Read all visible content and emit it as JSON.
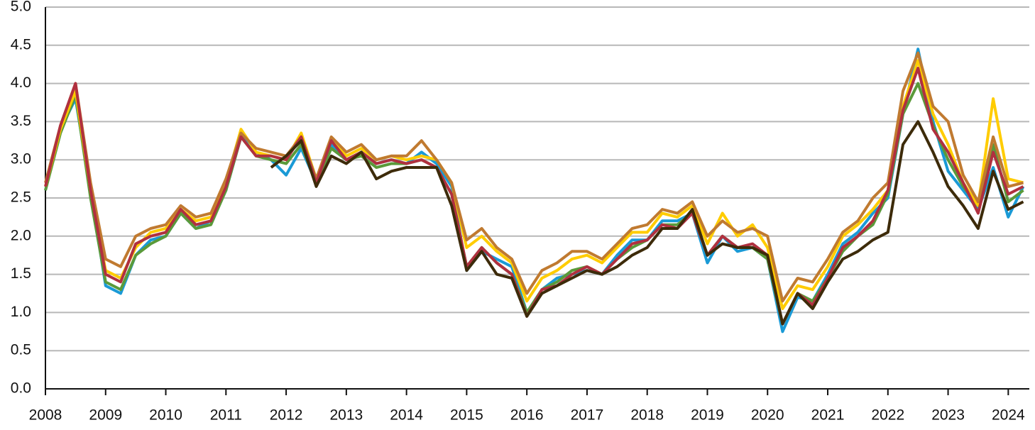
{
  "chart_data": {
    "type": "line",
    "x": [
      2008,
      2008.25,
      2008.5,
      2008.75,
      2009,
      2009.25,
      2009.5,
      2009.75,
      2010,
      2010.25,
      2010.5,
      2010.75,
      2011,
      2011.25,
      2011.5,
      2011.75,
      2012,
      2012.25,
      2012.5,
      2012.75,
      2013,
      2013.25,
      2013.5,
      2013.75,
      2014,
      2014.25,
      2014.5,
      2014.75,
      2015,
      2015.25,
      2015.5,
      2015.75,
      2016,
      2016.25,
      2016.5,
      2016.75,
      2017,
      2017.25,
      2017.5,
      2017.75,
      2018,
      2018.25,
      2018.5,
      2018.75,
      2019,
      2019.25,
      2019.5,
      2019.75,
      2020,
      2020.25,
      2020.5,
      2020.75,
      2021,
      2021.25,
      2021.5,
      2021.75,
      2022,
      2022.25,
      2022.5,
      2022.75,
      2023,
      2023.25,
      2023.5,
      2023.75,
      2024,
      2024.25
    ],
    "series": [
      {
        "color": "#1a9ad6",
        "values": [
          2.6,
          3.4,
          3.8,
          2.6,
          1.35,
          1.25,
          1.75,
          1.95,
          2.0,
          2.3,
          2.1,
          2.2,
          2.6,
          3.3,
          3.1,
          3.0,
          2.8,
          3.15,
          2.7,
          3.2,
          3.0,
          3.1,
          2.95,
          3.0,
          2.95,
          3.1,
          2.95,
          2.65,
          1.55,
          1.8,
          1.7,
          1.6,
          1.0,
          1.3,
          1.45,
          1.5,
          1.55,
          1.5,
          1.75,
          1.95,
          1.95,
          2.2,
          2.2,
          2.3,
          1.65,
          2.0,
          1.8,
          1.85,
          1.7,
          0.75,
          1.2,
          1.15,
          1.5,
          1.9,
          2.05,
          2.3,
          2.5,
          3.6,
          4.45,
          3.5,
          2.85,
          2.6,
          2.35,
          2.9,
          2.25,
          2.65
        ]
      },
      {
        "color": "#5a9a3a",
        "values": [
          2.6,
          3.35,
          3.85,
          2.5,
          1.4,
          1.3,
          1.75,
          1.9,
          2.0,
          2.3,
          2.1,
          2.15,
          2.6,
          3.3,
          3.05,
          3.0,
          2.95,
          3.2,
          2.7,
          3.15,
          3.0,
          3.05,
          2.9,
          2.95,
          2.95,
          3.0,
          2.9,
          2.55,
          1.6,
          1.85,
          1.65,
          1.5,
          1.0,
          1.3,
          1.4,
          1.55,
          1.6,
          1.5,
          1.7,
          1.85,
          1.95,
          2.15,
          2.15,
          2.3,
          1.75,
          2.0,
          1.85,
          1.85,
          1.7,
          0.85,
          1.25,
          1.15,
          1.45,
          1.8,
          2.0,
          2.15,
          2.55,
          3.6,
          4.0,
          3.45,
          3.0,
          2.65,
          2.4,
          3.2,
          2.45,
          2.6
        ]
      },
      {
        "color": "#ffcc00",
        "values": [
          2.65,
          3.4,
          3.9,
          2.6,
          1.55,
          1.45,
          1.85,
          2.05,
          2.1,
          2.35,
          2.2,
          2.25,
          2.7,
          3.4,
          3.1,
          3.05,
          3.0,
          3.35,
          2.75,
          3.25,
          3.05,
          3.15,
          3.0,
          3.05,
          3.0,
          3.05,
          3.0,
          2.7,
          1.85,
          2.0,
          1.8,
          1.65,
          1.15,
          1.45,
          1.55,
          1.7,
          1.75,
          1.65,
          1.85,
          2.05,
          2.05,
          2.3,
          2.25,
          2.4,
          1.9,
          2.3,
          2.0,
          2.15,
          1.85,
          1.05,
          1.35,
          1.3,
          1.6,
          2.0,
          2.15,
          2.35,
          2.6,
          3.7,
          4.3,
          3.6,
          3.2,
          2.7,
          2.4,
          3.8,
          2.75,
          2.7
        ]
      },
      {
        "color": "#c07a30",
        "values": [
          2.7,
          3.45,
          4.0,
          2.7,
          1.7,
          1.6,
          2.0,
          2.1,
          2.15,
          2.4,
          2.25,
          2.3,
          2.75,
          3.35,
          3.15,
          3.1,
          3.05,
          3.3,
          2.75,
          3.3,
          3.1,
          3.2,
          3.0,
          3.05,
          3.05,
          3.25,
          3.0,
          2.7,
          1.95,
          2.1,
          1.85,
          1.7,
          1.25,
          1.55,
          1.65,
          1.8,
          1.8,
          1.7,
          1.9,
          2.1,
          2.15,
          2.35,
          2.3,
          2.45,
          2.0,
          2.2,
          2.05,
          2.1,
          2.0,
          1.15,
          1.45,
          1.4,
          1.7,
          2.05,
          2.2,
          2.5,
          2.7,
          3.9,
          4.4,
          3.7,
          3.5,
          2.8,
          2.45,
          3.3,
          2.65,
          2.7
        ]
      },
      {
        "color": "#b0303f",
        "values": [
          2.65,
          3.45,
          4.0,
          2.6,
          1.5,
          1.4,
          1.9,
          2.0,
          2.05,
          2.35,
          2.15,
          2.2,
          2.65,
          3.3,
          3.05,
          3.05,
          3.0,
          3.3,
          2.7,
          3.25,
          3.0,
          3.1,
          2.95,
          3.0,
          2.95,
          3.0,
          2.9,
          2.55,
          1.6,
          1.85,
          1.65,
          1.5,
          0.95,
          1.3,
          1.35,
          1.5,
          1.6,
          1.5,
          1.7,
          1.9,
          1.95,
          2.15,
          2.1,
          2.3,
          1.75,
          2.0,
          1.85,
          1.9,
          1.75,
          0.85,
          1.25,
          1.1,
          1.45,
          1.85,
          2.0,
          2.2,
          2.6,
          3.65,
          4.2,
          3.4,
          3.1,
          2.7,
          2.3,
          3.1,
          2.55,
          2.65
        ]
      },
      {
        "color": "#3d2b0a",
        "values": [
          null,
          null,
          null,
          null,
          null,
          null,
          null,
          null,
          null,
          null,
          null,
          null,
          null,
          null,
          null,
          2.9,
          3.05,
          3.25,
          2.65,
          3.05,
          2.95,
          3.1,
          2.75,
          2.85,
          2.9,
          2.9,
          2.9,
          2.4,
          1.55,
          1.8,
          1.5,
          1.45,
          0.95,
          1.25,
          1.35,
          1.45,
          1.55,
          1.5,
          1.6,
          1.75,
          1.85,
          2.1,
          2.1,
          2.35,
          1.75,
          1.9,
          1.85,
          1.85,
          1.75,
          0.85,
          1.25,
          1.05,
          1.4,
          1.7,
          1.8,
          1.95,
          2.05,
          3.2,
          3.5,
          3.1,
          2.65,
          2.4,
          2.1,
          2.85,
          2.35,
          2.45
        ]
      }
    ],
    "xlim": [
      2008,
      2024.35
    ],
    "xticks": [
      2008,
      2009,
      2010,
      2011,
      2012,
      2013,
      2014,
      2015,
      2016,
      2017,
      2018,
      2019,
      2020,
      2021,
      2022,
      2023,
      2024
    ],
    "ylim": [
      0,
      5
    ],
    "yticks": [
      {
        "value": 0,
        "label": "0.0"
      },
      {
        "value": 0.5,
        "label": "0.5"
      },
      {
        "value": 1,
        "label": "1.0"
      },
      {
        "value": 1.5,
        "label": "1.5"
      },
      {
        "value": 2,
        "label": "2.0"
      },
      {
        "value": 2.5,
        "label": "2.5"
      },
      {
        "value": 3,
        "label": "3.0"
      },
      {
        "value": 3.5,
        "label": "3.5"
      },
      {
        "value": 4,
        "label": "4.0"
      },
      {
        "value": 4.5,
        "label": "4.5"
      },
      {
        "value": 5,
        "label": "5.0"
      }
    ],
    "grid": true
  }
}
